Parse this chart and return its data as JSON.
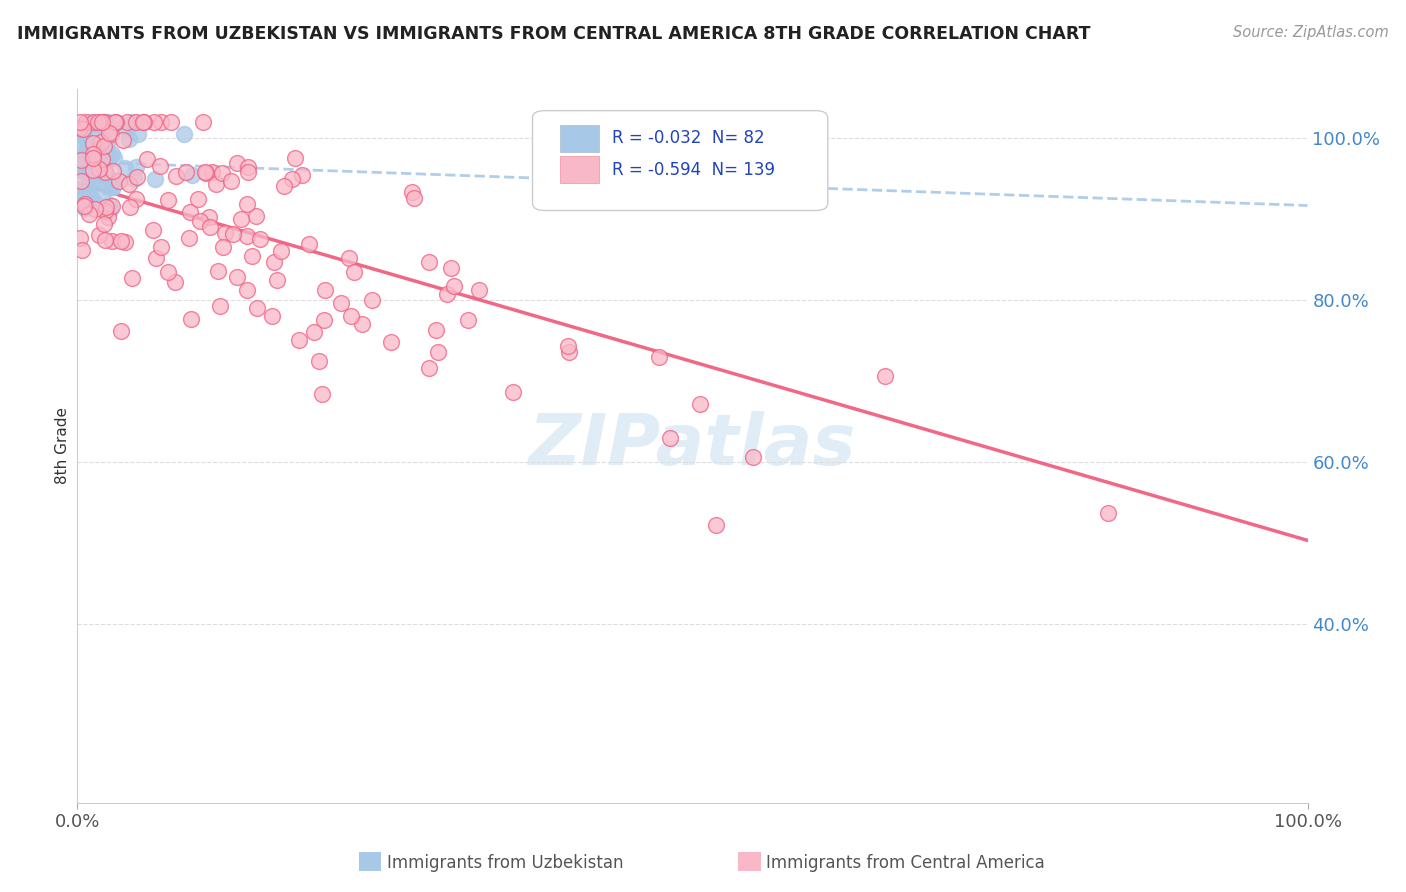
{
  "title": "IMMIGRANTS FROM UZBEKISTAN VS IMMIGRANTS FROM CENTRAL AMERICA 8TH GRADE CORRELATION CHART",
  "source": "Source: ZipAtlas.com",
  "ylabel": "8th Grade",
  "legend_label1": "Immigrants from Uzbekistan",
  "legend_label2": "Immigrants from Central America",
  "R1": -0.032,
  "N1": 82,
  "R2": -0.594,
  "N2": 139,
  "color_uzbekistan": "#a8c8e8",
  "color_central_america": "#f9b8c8",
  "color_uzbekistan_line": "#a8c8e8",
  "color_central_america_line": "#f06080",
  "background_color": "#ffffff",
  "grid_color": "#e0e0e0",
  "watermark": "ZIPatlas",
  "watermark_color": "#c8dff0"
}
